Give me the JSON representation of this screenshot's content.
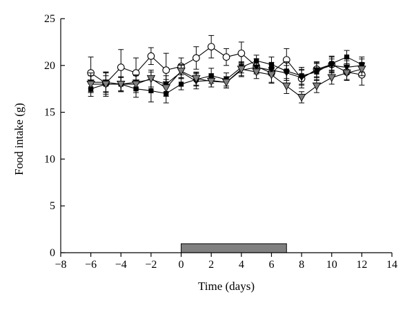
{
  "chart_data": {
    "type": "line",
    "title": "",
    "xlabel": "Time (days)",
    "ylabel": "Food intake (g)",
    "xlim": [
      -8,
      14
    ],
    "ylim": [
      0,
      25
    ],
    "xticks": [
      -8,
      -6,
      -4,
      -2,
      0,
      2,
      4,
      6,
      8,
      10,
      12,
      14
    ],
    "yticks": [
      0,
      5,
      10,
      15,
      20,
      25
    ],
    "x": [
      -6,
      -5,
      -4,
      -3,
      -2,
      -1,
      0,
      1,
      2,
      3,
      4,
      5,
      6,
      7,
      8,
      9,
      10,
      11,
      12
    ],
    "treatment_bar": {
      "start": 0,
      "end": 7,
      "fill": "#808080"
    },
    "grid": false,
    "legend": "none",
    "series": [
      {
        "marker": "open-circle",
        "color": "#000000",
        "values": [
          19.2,
          18.1,
          19.8,
          19.2,
          21.0,
          19.5,
          19.9,
          20.8,
          22.0,
          20.9,
          21.3,
          19.9,
          19.2,
          20.6,
          18.6,
          19.6,
          20.1,
          19.3,
          19.0
        ],
        "errors": [
          1.7,
          1.2,
          1.9,
          1.6,
          0.9,
          1.8,
          0.9,
          1.2,
          1.2,
          0.9,
          1.2,
          0.8,
          1.1,
          1.2,
          1.0,
          0.8,
          0.9,
          0.9,
          1.1
        ]
      },
      {
        "marker": "filled-square",
        "color": "#000000",
        "values": [
          17.5,
          18.0,
          18.0,
          17.5,
          17.3,
          17.0,
          18.0,
          18.5,
          18.9,
          18.5,
          19.8,
          20.5,
          20.1,
          19.4,
          18.9,
          19.3,
          20.2,
          20.9,
          20.1
        ],
        "errors": [
          0.8,
          1.3,
          0.8,
          0.9,
          1.2,
          1.0,
          0.6,
          0.7,
          0.8,
          0.7,
          0.6,
          0.6,
          0.8,
          1.0,
          0.9,
          0.9,
          0.7,
          0.7,
          0.8
        ]
      },
      {
        "marker": "filled-down-triangle",
        "color": "#000000",
        "values": [
          18.2,
          18.2,
          18.0,
          18.2,
          18.5,
          18.0,
          19.3,
          18.3,
          18.4,
          18.2,
          19.5,
          19.8,
          19.5,
          19.2,
          18.7,
          19.5,
          20.0,
          19.8,
          20.0
        ],
        "errors": [
          1.0,
          1.0,
          0.7,
          0.8,
          0.8,
          0.9,
          0.7,
          0.8,
          0.7,
          0.6,
          0.7,
          0.6,
          0.6,
          0.8,
          0.8,
          0.8,
          0.7,
          0.7,
          0.7
        ]
      },
      {
        "marker": "gray-down-triangle",
        "color": "#808080",
        "values": [
          18.0,
          18.0,
          18.0,
          18.0,
          18.6,
          17.6,
          19.4,
          18.6,
          18.3,
          18.2,
          19.6,
          19.3,
          19.0,
          17.8,
          16.6,
          17.8,
          18.7,
          19.2,
          19.6
        ],
        "errors": [
          0.9,
          0.9,
          0.8,
          0.9,
          0.9,
          0.9,
          0.7,
          0.7,
          0.6,
          0.6,
          0.7,
          0.7,
          0.8,
          0.8,
          0.6,
          0.7,
          0.7,
          0.7,
          0.7
        ]
      }
    ]
  }
}
